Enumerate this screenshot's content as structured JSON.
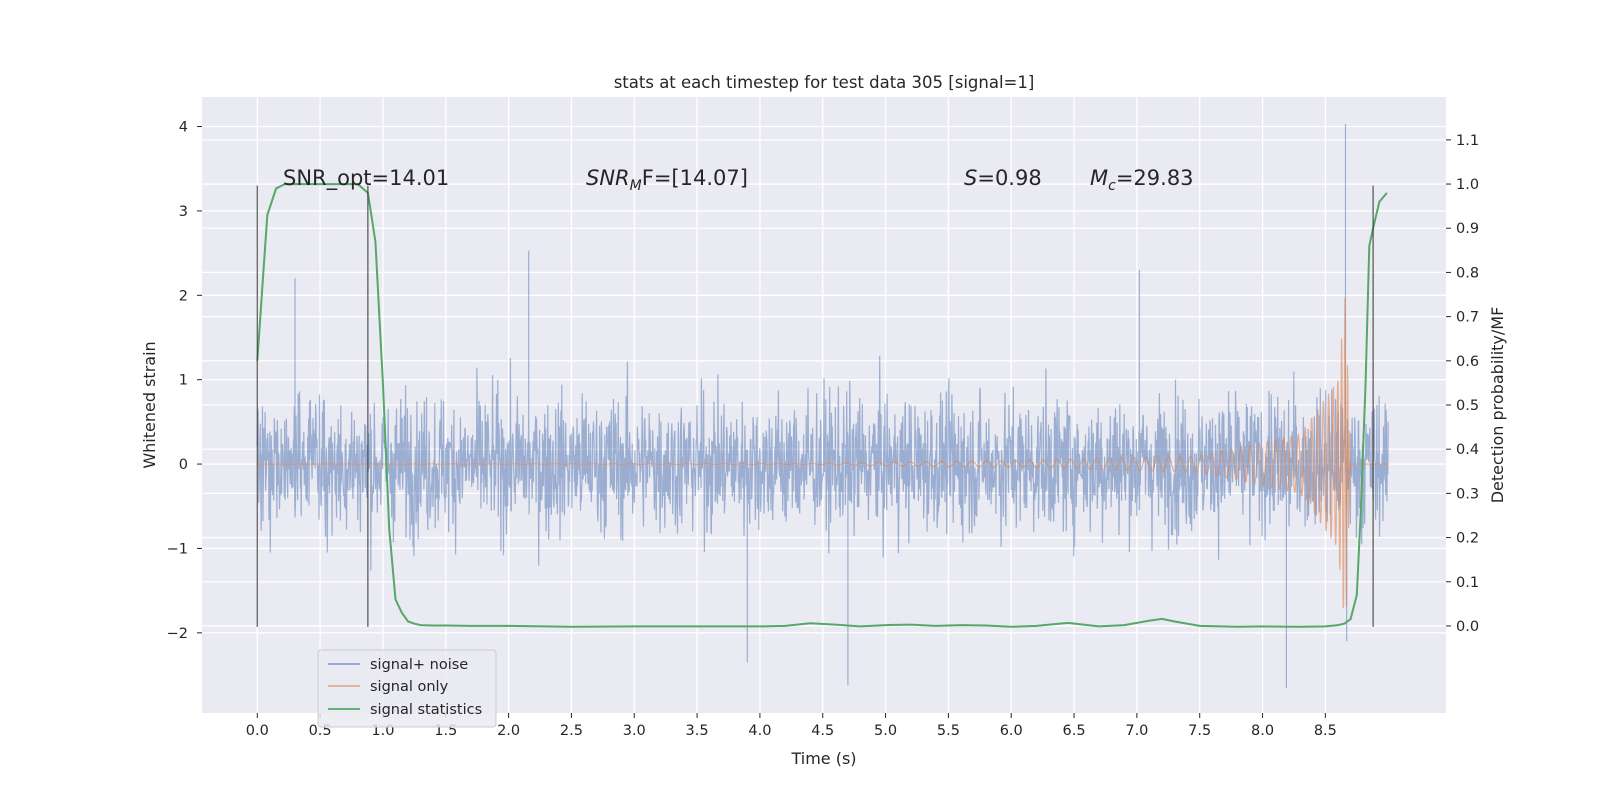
{
  "chart_data": {
    "type": "line",
    "title": "stats at each timestep for test data 305 [signal=1]",
    "xlabel": "Time (s)",
    "ylabel_left": "Whitened strain",
    "ylabel_right": "Detection probability/MF",
    "xlim": [
      -0.44,
      9.46
    ],
    "ylim_left": [
      -2.95,
      4.35
    ],
    "ylim_right": [
      -0.197,
      1.197
    ],
    "x_ticks": [
      "0.0",
      "0.5",
      "1.0",
      "1.5",
      "2.0",
      "2.5",
      "3.0",
      "3.5",
      "4.0",
      "4.5",
      "5.0",
      "5.5",
      "6.0",
      "6.5",
      "7.0",
      "7.5",
      "8.0",
      "8.5"
    ],
    "y_ticks_left": [
      "4",
      "3",
      "2",
      "1",
      "0",
      "−1",
      "−2"
    ],
    "y_ticks_right": [
      "1.1",
      "1.0",
      "0.9",
      "0.8",
      "0.7",
      "0.6",
      "0.5",
      "0.4",
      "0.3",
      "0.2",
      "0.1",
      "0.0"
    ],
    "grid": true,
    "legend_placement": "lower-left",
    "annotations": {
      "snr_opt": "SNR_opt=14.01",
      "snr_mf_base": "SNR",
      "snr_mf_sub": "M",
      "snr_mf_rest": "F=[14.07]",
      "s_sym": "S",
      "s_val": "=0.98",
      "mc_sym": "M",
      "mc_sub": "c",
      "mc_val": "=29.83"
    },
    "vertical_markers": [
      {
        "x": 0.0,
        "y_range": [
          -1.93,
          3.3
        ]
      },
      {
        "x": 0.88,
        "y_range": [
          -1.93,
          3.3
        ]
      },
      {
        "x": 8.88,
        "y_range": [
          -1.93,
          3.3
        ]
      }
    ],
    "series": [
      {
        "name": "signal+ noise",
        "color": "#4c72b0",
        "axis": "left",
        "x_range": [
          0.0,
          9.0
        ],
        "envelope_y": [
          -1.3,
          1.25
        ],
        "notable_spikes": [
          {
            "x": 0.3,
            "y": 2.2
          },
          {
            "x": 2.16,
            "y": 2.53
          },
          {
            "x": 3.9,
            "y": -2.35
          },
          {
            "x": 4.7,
            "y": -2.62
          },
          {
            "x": 7.02,
            "y": 2.3
          },
          {
            "x": 8.19,
            "y": -2.65
          },
          {
            "x": 8.66,
            "y": 4.03
          },
          {
            "x": 8.67,
            "y": -2.1
          }
        ]
      },
      {
        "name": "signal only",
        "color": "#dd8452",
        "axis": "left",
        "x_range": [
          0.0,
          9.0
        ],
        "description_points": [
          {
            "x": 4.5,
            "amp": 0.01
          },
          {
            "x": 6.0,
            "amp": 0.04
          },
          {
            "x": 7.5,
            "amp": 0.1
          },
          {
            "x": 8.3,
            "amp": 0.35
          },
          {
            "x": 8.6,
            "amp": 1.0
          },
          {
            "x": 8.66,
            "amp": 2.05
          },
          {
            "x": 8.7,
            "amp": 0.0
          }
        ]
      },
      {
        "name": "signal statistics",
        "color": "#55a868",
        "axis": "right",
        "x": [
          0.0,
          0.08,
          0.15,
          0.22,
          0.3,
          0.5,
          0.7,
          0.8,
          0.88,
          0.94,
          1.0,
          1.05,
          1.1,
          1.15,
          1.2,
          1.25,
          1.3,
          1.4,
          1.5,
          1.7,
          2.0,
          2.5,
          3.0,
          3.5,
          4.0,
          4.2,
          4.4,
          4.6,
          4.8,
          5.0,
          5.2,
          5.4,
          5.6,
          5.8,
          6.0,
          6.2,
          6.45,
          6.7,
          6.9,
          7.1,
          7.2,
          7.3,
          7.5,
          7.8,
          8.0,
          8.3,
          8.5,
          8.6,
          8.65,
          8.7,
          8.75,
          8.78,
          8.82,
          8.85,
          8.88,
          8.93,
          8.99
        ],
        "y": [
          0.6,
          0.93,
          0.99,
          1.0,
          1.0,
          1.0,
          1.0,
          1.0,
          0.98,
          0.87,
          0.55,
          0.22,
          0.06,
          0.03,
          0.01,
          0.005,
          0.002,
          0.001,
          0.001,
          0.0,
          0.0,
          -0.002,
          -0.001,
          -0.001,
          -0.001,
          0.0,
          0.006,
          0.003,
          -0.001,
          0.002,
          0.003,
          0.0,
          0.002,
          0.001,
          -0.002,
          0.0,
          0.007,
          -0.001,
          0.002,
          0.012,
          0.016,
          0.01,
          0.0,
          -0.002,
          -0.001,
          -0.002,
          -0.001,
          0.002,
          0.005,
          0.015,
          0.07,
          0.25,
          0.55,
          0.86,
          0.9,
          0.96,
          0.98
        ]
      }
    ]
  }
}
